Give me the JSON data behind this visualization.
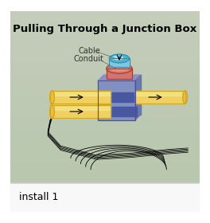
{
  "title": "Pulling Through a Junction Box",
  "subtitle": "install 1",
  "bg_color_top": "#b8c8a8",
  "bg_color_bottom": "#c8d8b8",
  "title_fontsize": 9.5,
  "subtitle_fontsize": 9,
  "label_cable": "Cable",
  "label_conduit": "Conduit",
  "colors": {
    "cable_top": "#7ec8e0",
    "cable_top_dark": "#5ab0cc",
    "conduit_red": "#e07060",
    "conduit_red_dark": "#c05040",
    "junction_box": "#8090c0",
    "junction_box_dark": "#6070a0",
    "tube_yellow": "#f0d060",
    "tube_yellow_dark": "#d0a820",
    "tube_end": "#e8c040",
    "white": "#ffffff",
    "black": "#000000",
    "arrow_color": "#000000",
    "wire_color": "#000000",
    "label_color": "#333333"
  }
}
